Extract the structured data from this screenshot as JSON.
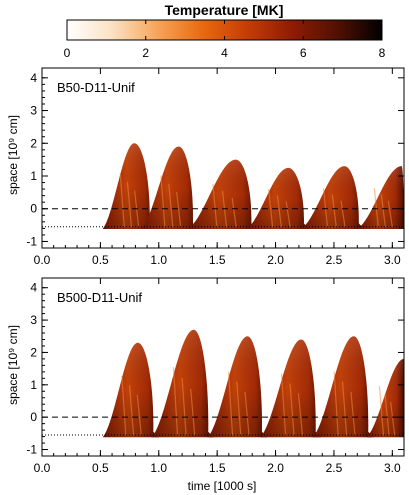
{
  "colorbar": {
    "title": "Temperature [MK]",
    "min": 0,
    "max": 8,
    "ticks": [
      "0",
      "2",
      "4",
      "6",
      "8"
    ],
    "colors": [
      "#ffffff",
      "#fbe2c4",
      "#f7a55a",
      "#e86a12",
      "#c53d05",
      "#8f1c04",
      "#521002",
      "#000000"
    ]
  },
  "chart_data": [
    {
      "type": "heatmap",
      "panel_label": "B50-D11-Unif",
      "xlabel": "",
      "ylabel": "space [10⁹ cm]",
      "xlim": [
        0.0,
        3.1
      ],
      "ylim": [
        -1.2,
        4.3
      ],
      "xticks": [
        "0.0",
        "0.5",
        "1.0",
        "1.5",
        "2.0",
        "2.5",
        "3.0"
      ],
      "yticks": [
        "-1",
        "0",
        "1",
        "2",
        "3",
        "4"
      ],
      "dashed_line_y": 0.0,
      "dotted_line_y": -0.55,
      "events": [
        {
          "start": 0.52,
          "peak_time": 0.79,
          "end": 0.93,
          "peak_height": 2.0
        },
        {
          "start": 0.85,
          "peak_time": 1.17,
          "end": 1.3,
          "peak_height": 1.9
        },
        {
          "start": 1.25,
          "peak_time": 1.66,
          "end": 1.8,
          "peak_height": 1.5
        },
        {
          "start": 1.75,
          "peak_time": 2.11,
          "end": 2.25,
          "peak_height": 1.25
        },
        {
          "start": 2.22,
          "peak_time": 2.59,
          "end": 2.72,
          "peak_height": 1.3
        },
        {
          "start": 2.7,
          "peak_time": 3.08,
          "end": 3.1,
          "peak_height": 1.3
        }
      ]
    },
    {
      "type": "heatmap",
      "panel_label": "B500-D11-Unif",
      "xlabel": "time [1000 s]",
      "ylabel": "space [10⁹ cm]",
      "xlim": [
        0.0,
        3.1
      ],
      "ylim": [
        -1.2,
        4.3
      ],
      "xticks": [
        "0.0",
        "0.5",
        "1.0",
        "1.5",
        "2.0",
        "2.5",
        "3.0"
      ],
      "yticks": [
        "-1",
        "0",
        "1",
        "2",
        "3",
        "4"
      ],
      "dashed_line_y": 0.0,
      "dotted_line_y": -0.55,
      "events": [
        {
          "start": 0.52,
          "peak_time": 0.82,
          "end": 0.96,
          "peak_height": 2.3
        },
        {
          "start": 0.94,
          "peak_time": 1.3,
          "end": 1.43,
          "peak_height": 2.7
        },
        {
          "start": 1.42,
          "peak_time": 1.76,
          "end": 1.89,
          "peak_height": 2.5
        },
        {
          "start": 1.87,
          "peak_time": 2.22,
          "end": 2.35,
          "peak_height": 2.4
        },
        {
          "start": 2.32,
          "peak_time": 2.67,
          "end": 2.8,
          "peak_height": 2.5
        },
        {
          "start": 2.78,
          "peak_time": 3.1,
          "end": 3.1,
          "peak_height": 1.8
        }
      ]
    }
  ]
}
